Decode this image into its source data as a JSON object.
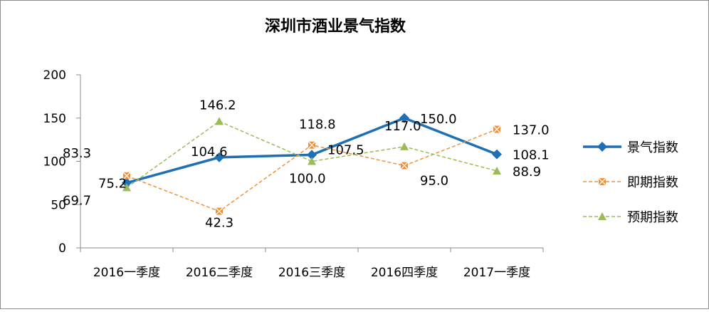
{
  "chart_data": {
    "type": "line",
    "title": "深圳市酒业景气指数",
    "xlabel": "",
    "ylabel": "",
    "ylim": [
      0,
      200
    ],
    "yticks": [
      0,
      50,
      100,
      150,
      200
    ],
    "grid": false,
    "legend_position": "right",
    "categories": [
      "2016一季度",
      "2016二季度",
      "2016三季度",
      "2016四季度",
      "2017一季度"
    ],
    "series": [
      {
        "name": "景气指数",
        "values": [
          75.2,
          104.6,
          107.5,
          150.0,
          108.1
        ],
        "labels": [
          "75.2",
          "104.6",
          "107.5",
          "150.0",
          "108.1"
        ],
        "color": "#1f6fb5",
        "marker": "diamond",
        "line_style": "solid"
      },
      {
        "name": "即期指数",
        "values": [
          83.3,
          42.3,
          118.8,
          95.0,
          137.0
        ],
        "labels": [
          "83.3",
          "42.3",
          "118.8",
          "95.0",
          "137.0"
        ],
        "color": "#f0923c",
        "marker": "x-square",
        "line_style": "dashed"
      },
      {
        "name": "预期指数",
        "values": [
          69.7,
          146.2,
          100.0,
          117.0,
          88.9
        ],
        "labels": [
          "69.7",
          "146.2",
          "100.0",
          "117.0",
          "88.9"
        ],
        "color": "#9bbb59",
        "marker": "triangle",
        "line_style": "dashed"
      }
    ]
  }
}
